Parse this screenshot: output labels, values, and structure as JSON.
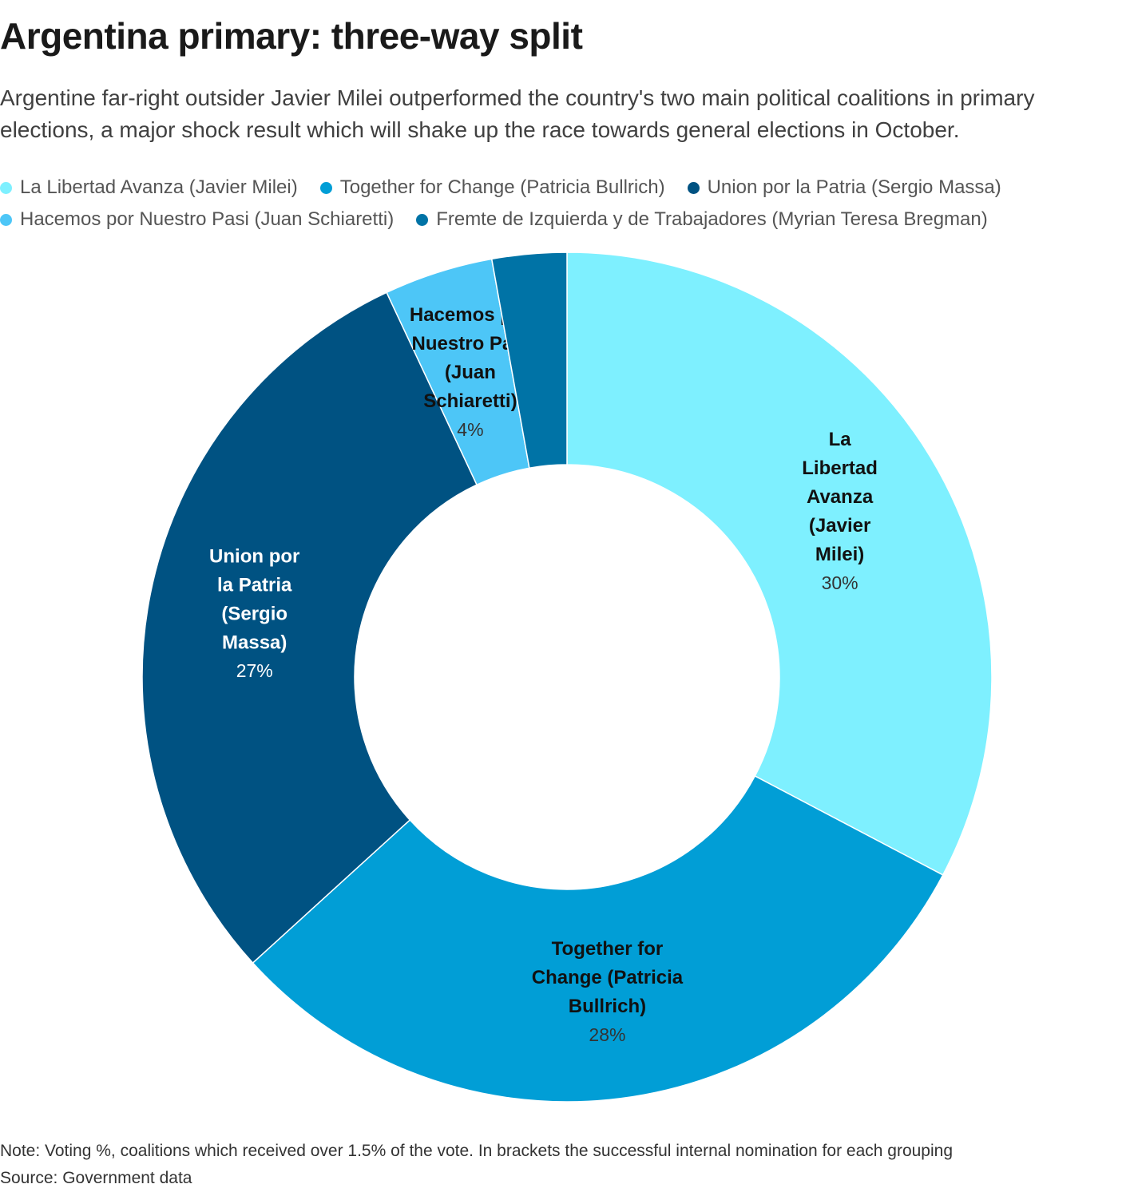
{
  "header": {
    "title": "Argentina primary: three-way split",
    "subtitle": "Argentine far-right outsider Javier Milei outperformed the country's two main political coalitions in primary elections, a major shock result which will shake up the race towards general elections in October."
  },
  "footer": {
    "note": "Note: Voting %, coalitions which received over 1.5% of the vote. In brackets the successful internal nomination for each grouping",
    "source": "Source: Government data"
  },
  "chart_data": {
    "type": "pie",
    "subtype": "donut",
    "title": "Argentina primary: three-way split",
    "legend_position": "top",
    "value_suffix": "%",
    "slices": [
      {
        "name": "La Libertad Avanza (Javier Milei)",
        "value": 30.0,
        "label_lines": [
          "La",
          "Libertad",
          "Avanza",
          "(Javier",
          "Milei)"
        ],
        "display": "30%",
        "color": "#7ef0ff",
        "text_color": "#111111",
        "value_color": "#333333"
      },
      {
        "name": "Together for Change (Patricia Bullrich)",
        "value": 28.0,
        "label_lines": [
          "Together for",
          "Change (Patricia",
          "Bullrich)"
        ],
        "display": "28%",
        "color": "#019ed6",
        "text_color": "#111111",
        "value_color": "#333333"
      },
      {
        "name": "Union por la Patria (Sergio Massa)",
        "value": 27.3,
        "label_lines": [
          "Union por",
          "la Patria",
          "(Sergio",
          "Massa)"
        ],
        "display": "27%",
        "color": "#005282",
        "text_color": "#ffffff",
        "value_color": "#ffffff"
      },
      {
        "name": "Hacemos por Nuestro Pasi (Juan Schiaretti)",
        "value": 3.8,
        "label_lines": [
          "Hacemos por",
          "Nuestro Pasi",
          "(Juan",
          "Schiaretti)"
        ],
        "display": "4%",
        "color": "#4dc6f7",
        "text_color": "#111111",
        "value_color": "#333333"
      },
      {
        "name": "Fremte de Izquierda y de Trabajadores (Myrian Teresa Bregman)",
        "value": 2.6,
        "label_lines": [],
        "display": "",
        "color": "#0073a6",
        "text_color": "#ffffff",
        "value_color": "#ffffff"
      }
    ]
  }
}
